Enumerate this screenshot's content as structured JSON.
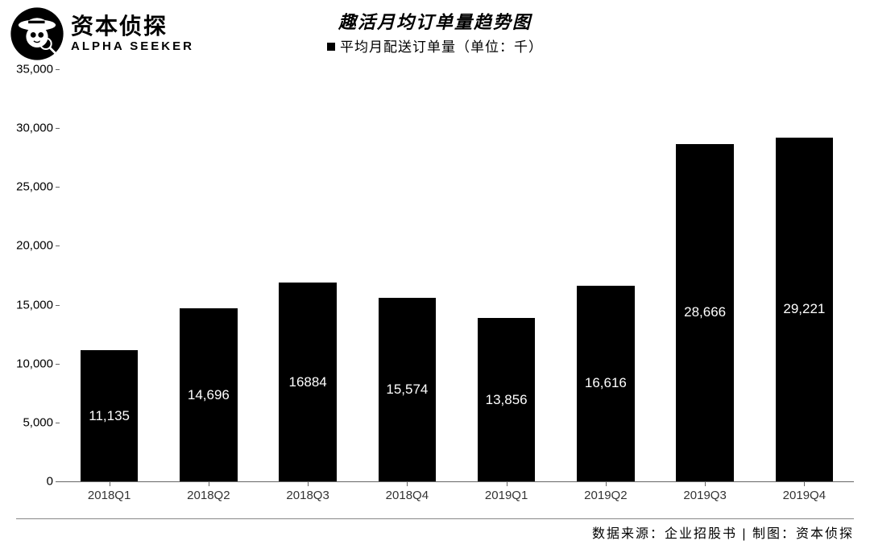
{
  "logo": {
    "cn": "资本侦探",
    "en": "ALPHA SEEKER"
  },
  "chart": {
    "type": "bar",
    "title": "趣活月均订单量趋势图",
    "legend_label": "平均月配送订单量（单位：千）",
    "categories": [
      "2018Q1",
      "2018Q2",
      "2018Q3",
      "2018Q4",
      "2019Q1",
      "2019Q2",
      "2019Q3",
      "2019Q4"
    ],
    "values": [
      11135,
      14696,
      16884,
      15574,
      13856,
      16616,
      28666,
      29221
    ],
    "value_labels": [
      "11,135",
      "14,696",
      "16884",
      "15,574",
      "13,856",
      "16,616",
      "28,666",
      "29,221"
    ],
    "bar_color": "#000000",
    "value_label_color": "#ffffff",
    "value_label_fontsize": 17,
    "ylim": [
      0,
      35000
    ],
    "ytick_step": 5000,
    "ytick_labels": [
      "0",
      "5,000",
      "10,000",
      "15,000",
      "20,000",
      "25,000",
      "30,000",
      "35,000"
    ],
    "background_color": "#ffffff",
    "axis_color": "#666666",
    "title_fontsize": 22,
    "legend_fontsize": 17,
    "xlabel_fontsize": 15,
    "ylabel_fontsize": 15,
    "bar_width": 0.58
  },
  "footer": "数据来源：企业招股书 | 制图：资本侦探"
}
